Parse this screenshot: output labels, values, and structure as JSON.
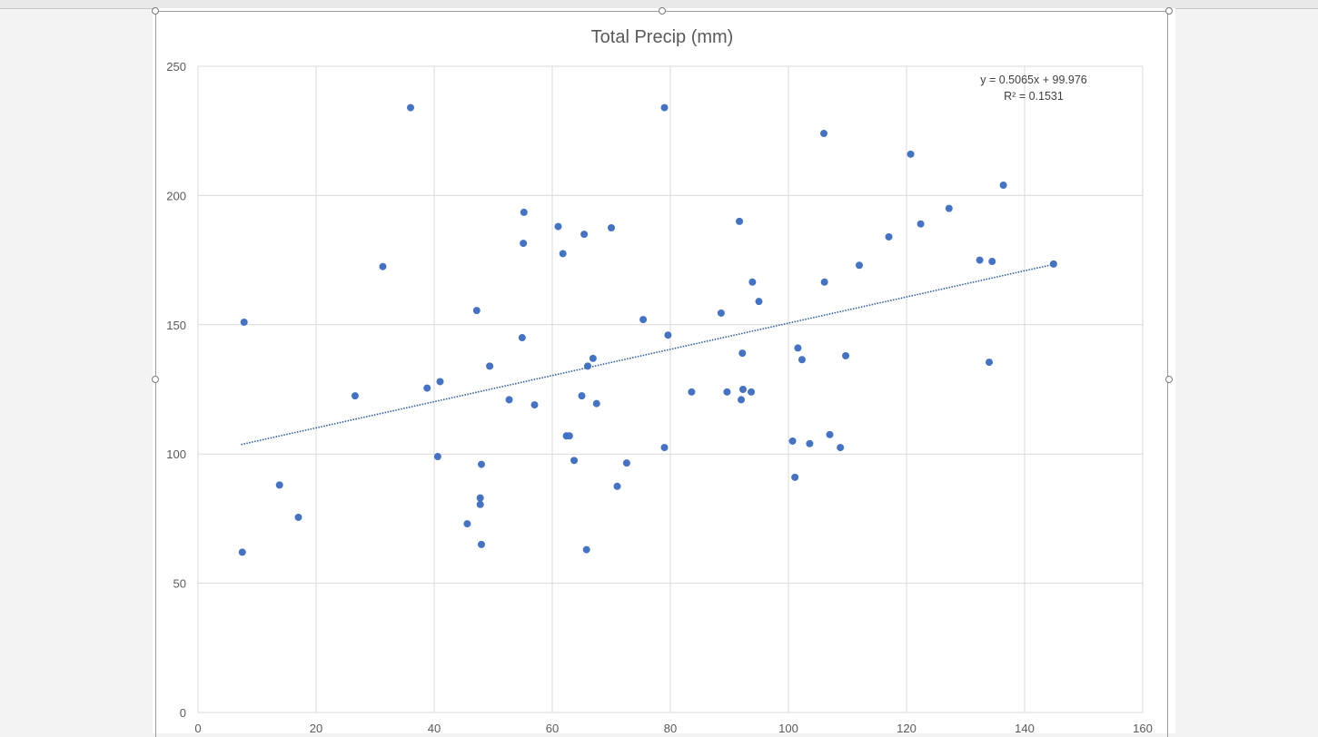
{
  "chart_data": {
    "type": "scatter",
    "title": "Total Precip (mm)",
    "xlabel": "",
    "ylabel": "",
    "xlim": [
      0,
      160
    ],
    "ylim": [
      0,
      250
    ],
    "xticks": [
      "0",
      "20",
      "40",
      "60",
      "80",
      "100",
      "120",
      "140",
      "160"
    ],
    "yticks": [
      "0",
      "50",
      "100",
      "150",
      "200",
      "250"
    ],
    "grid": true,
    "legend": "none",
    "marker_color": "#4472C4",
    "trendline": {
      "type": "linear",
      "slope": 0.5065,
      "intercept": 99.976,
      "x_range": [
        7.3,
        145
      ],
      "style": "dotted",
      "color": "#2E5C9E",
      "equation": "y = 0.5065x + 99.976",
      "r_squared": "R² = 0.1531"
    },
    "points": [
      [
        7.5,
        62
      ],
      [
        7.8,
        151
      ],
      [
        13.8,
        88
      ],
      [
        17,
        75.5
      ],
      [
        26.6,
        122.5
      ],
      [
        31.3,
        172.5
      ],
      [
        36,
        234
      ],
      [
        38.8,
        125.5
      ],
      [
        40.6,
        99
      ],
      [
        41,
        128
      ],
      [
        45.6,
        73
      ],
      [
        47.2,
        155.5
      ],
      [
        47.8,
        80.5
      ],
      [
        47.8,
        83
      ],
      [
        48,
        96
      ],
      [
        48,
        65
      ],
      [
        49.4,
        134
      ],
      [
        52.7,
        121
      ],
      [
        54.9,
        145
      ],
      [
        55.1,
        181.5
      ],
      [
        55.2,
        193.5
      ],
      [
        57,
        119
      ],
      [
        61,
        188
      ],
      [
        61.8,
        177.5
      ],
      [
        62.4,
        107
      ],
      [
        62.9,
        107
      ],
      [
        63.7,
        97.5
      ],
      [
        65,
        122.5
      ],
      [
        65.4,
        185
      ],
      [
        65.8,
        63
      ],
      [
        66,
        134
      ],
      [
        66.9,
        137
      ],
      [
        67.5,
        119.5
      ],
      [
        70,
        187.5
      ],
      [
        71,
        87.5
      ],
      [
        72.6,
        96.5
      ],
      [
        75.4,
        152
      ],
      [
        79,
        234
      ],
      [
        79,
        102.5
      ],
      [
        79.6,
        146
      ],
      [
        83.6,
        124
      ],
      [
        88.6,
        154.5
      ],
      [
        89.6,
        124
      ],
      [
        91.7,
        190
      ],
      [
        92,
        121
      ],
      [
        92.2,
        139
      ],
      [
        92.3,
        125
      ],
      [
        93.7,
        124
      ],
      [
        93.9,
        166.5
      ],
      [
        95,
        159
      ],
      [
        100.7,
        105
      ],
      [
        101.1,
        91
      ],
      [
        101.6,
        141
      ],
      [
        102.3,
        136.5
      ],
      [
        103.6,
        104
      ],
      [
        106,
        224
      ],
      [
        106.1,
        166.5
      ],
      [
        107,
        107.5
      ],
      [
        108.8,
        102.5
      ],
      [
        109.7,
        138
      ],
      [
        112,
        173
      ],
      [
        117,
        184
      ],
      [
        120.7,
        216
      ],
      [
        122.4,
        189
      ],
      [
        127.2,
        195
      ],
      [
        132.4,
        175
      ],
      [
        134,
        135.5
      ],
      [
        134.5,
        174.5
      ],
      [
        136.4,
        204
      ],
      [
        144.9,
        173.5
      ]
    ]
  }
}
